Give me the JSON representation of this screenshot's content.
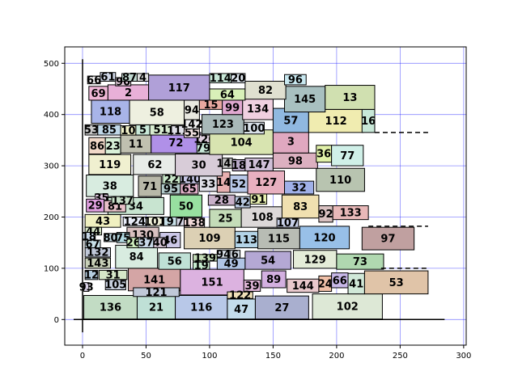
{
  "chart_data": {
    "type": "packed rectangles",
    "title": "",
    "xlabel": "",
    "ylabel": "",
    "xlim": [
      -14,
      302
    ],
    "ylim": [
      -50,
      532
    ],
    "grid": true,
    "grid_color": "#0000ff",
    "xticks": [
      0,
      50,
      100,
      150,
      200,
      250,
      300
    ],
    "yticks": [
      0,
      100,
      200,
      300,
      400,
      500
    ],
    "reference_lines": [
      {
        "orientation": "vertical",
        "x": 0,
        "y0": -25,
        "y1": 508,
        "style": "solid"
      },
      {
        "orientation": "horizontal",
        "y": 0,
        "x0": -7,
        "x1": 285,
        "style": "solid"
      },
      {
        "orientation": "horizontal",
        "y": 365,
        "x0": 230,
        "x1": 272,
        "style": "dashed"
      },
      {
        "orientation": "horizontal",
        "y": 182,
        "x0": 225,
        "x1": 272,
        "style": "dashed"
      },
      {
        "orientation": "horizontal",
        "y": 100,
        "x0": 235,
        "x1": 272,
        "style": "dashed"
      }
    ],
    "rects": [
      {
        "label": "136",
        "x0": 1,
        "x1": 43,
        "y0": 1,
        "y1": 47,
        "color": "#c2dcc4"
      },
      {
        "label": "21",
        "x0": 43,
        "x1": 73,
        "y0": 1,
        "y1": 47,
        "color": "#bfe0d6"
      },
      {
        "label": "116",
        "x0": 73,
        "x1": 114,
        "y0": 1,
        "y1": 47,
        "color": "#b8c8e8"
      },
      {
        "label": "47",
        "x0": 114,
        "x1": 136,
        "y0": 1,
        "y1": 40,
        "color": "#c4dcec"
      },
      {
        "label": "27",
        "x0": 136,
        "x1": 178,
        "y0": 1,
        "y1": 46,
        "color": "#a9afcf"
      },
      {
        "label": "102",
        "x0": 181,
        "x1": 236,
        "y0": 1,
        "y1": 50,
        "color": "#dde8d6"
      },
      {
        "label": "93",
        "x0": 1,
        "x1": 5,
        "y0": 55,
        "y1": 72,
        "color": "#d8d0e4"
      },
      {
        "label": "12",
        "x0": 2,
        "x1": 12,
        "y0": 78,
        "y1": 96,
        "color": "#b5cde0"
      },
      {
        "label": "31",
        "x0": 13,
        "x1": 35,
        "y0": 78,
        "y1": 96,
        "color": "#d5e8c8"
      },
      {
        "label": "141",
        "x0": 36,
        "x1": 77,
        "y0": 56,
        "y1": 100,
        "color": "#d4a5a5"
      },
      {
        "label": "151",
        "x0": 77,
        "x1": 127,
        "y0": 48,
        "y1": 98,
        "color": "#dcb2e0"
      },
      {
        "label": "39",
        "x0": 127,
        "x1": 140,
        "y0": 55,
        "y1": 77,
        "color": "#e0b6d8"
      },
      {
        "label": "122",
        "x0": 114,
        "x1": 134,
        "y0": 41,
        "y1": 54,
        "color": "#f0e0b8"
      },
      {
        "label": "89",
        "x0": 141,
        "x1": 160,
        "y0": 62,
        "y1": 95,
        "color": "#d3b0e0"
      },
      {
        "label": "144",
        "x0": 161,
        "x1": 186,
        "y0": 53,
        "y1": 79,
        "color": "#e8c8cc"
      },
      {
        "label": "24",
        "x0": 186,
        "x1": 196,
        "y0": 55,
        "y1": 85,
        "color": "#f0c0a8"
      },
      {
        "label": "66",
        "x0": 196,
        "x1": 209,
        "y0": 62,
        "y1": 91,
        "color": "#c8b8e8"
      },
      {
        "label": "41",
        "x0": 209,
        "x1": 222,
        "y0": 50,
        "y1": 90,
        "color": "#d0e8d8"
      },
      {
        "label": "53",
        "x0": 222,
        "x1": 272,
        "y0": 50,
        "y1": 95,
        "color": "#e0c4a8"
      },
      {
        "label": "56",
        "x0": 60,
        "x1": 85,
        "y0": 98,
        "y1": 130,
        "color": "#bfe0d6"
      },
      {
        "label": "84",
        "x0": 26,
        "x1": 59,
        "y0": 100,
        "y1": 145,
        "color": "#d8ece0"
      },
      {
        "label": "143",
        "x0": 2,
        "x1": 22,
        "y0": 100,
        "y1": 120,
        "color": "#c8d0b8"
      },
      {
        "label": "132",
        "x0": 2,
        "x1": 22,
        "y0": 122,
        "y1": 140,
        "color": "#c0c8d8"
      },
      {
        "label": "19",
        "x0": 87,
        "x1": 100,
        "y0": 98,
        "y1": 112,
        "color": "#c8ecd0"
      },
      {
        "label": "139",
        "x0": 87,
        "x1": 106,
        "y0": 114,
        "y1": 127,
        "color": "#c4dcb8"
      },
      {
        "label": "49",
        "x0": 106,
        "x1": 128,
        "y0": 98,
        "y1": 120,
        "color": "#b0c4e4"
      },
      {
        "label": "54",
        "x0": 128,
        "x1": 164,
        "y0": 98,
        "y1": 133,
        "color": "#b4a8d4"
      },
      {
        "label": "129",
        "x0": 166,
        "x1": 200,
        "y0": 100,
        "y1": 135,
        "color": "#e4ecd8"
      },
      {
        "label": "73",
        "x0": 200,
        "x1": 237,
        "y0": 98,
        "y1": 128,
        "color": "#b0d8b0"
      },
      {
        "label": "109",
        "x0": 80,
        "x1": 120,
        "y0": 138,
        "y1": 180,
        "color": "#dcd0b4"
      },
      {
        "label": "113",
        "x0": 120,
        "x1": 138,
        "y0": 140,
        "y1": 172,
        "color": "#b4d4e8"
      },
      {
        "label": "115",
        "x0": 138,
        "x1": 171,
        "y0": 138,
        "y1": 178,
        "color": "#b8bcb4"
      },
      {
        "label": "120",
        "x0": 171,
        "x1": 210,
        "y0": 138,
        "y1": 182,
        "color": "#98c0e8"
      },
      {
        "label": "97",
        "x0": 220,
        "x1": 261,
        "y0": 136,
        "y1": 180,
        "color": "#c0a0a0"
      },
      {
        "label": "46",
        "x0": 61,
        "x1": 77,
        "y0": 140,
        "y1": 170,
        "color": "#ccc8e8"
      },
      {
        "label": "130",
        "x0": 35,
        "x1": 60,
        "y0": 150,
        "y1": 180,
        "color": "#d8c0c0"
      },
      {
        "label": "43",
        "x0": 2,
        "x1": 30,
        "y0": 180,
        "y1": 205,
        "color": "#f0f0c0"
      },
      {
        "label": "34",
        "x0": 20,
        "x1": 64,
        "y0": 205,
        "y1": 238,
        "color": "#c8e4d0"
      },
      {
        "label": "50",
        "x0": 69,
        "x1": 94,
        "y0": 200,
        "y1": 243,
        "color": "#98e0a0"
      },
      {
        "label": "25",
        "x0": 100,
        "x1": 125,
        "y0": 180,
        "y1": 215,
        "color": "#c4dcb8"
      },
      {
        "label": "108",
        "x0": 125,
        "x1": 158,
        "y0": 180,
        "y1": 220,
        "color": "#dcd8d8"
      },
      {
        "label": "107",
        "x0": 153,
        "x1": 170,
        "y0": 180,
        "y1": 198,
        "color": "#c8d0e8"
      },
      {
        "label": "83",
        "x0": 157,
        "x1": 186,
        "y0": 198,
        "y1": 243,
        "color": "#f0e0b0"
      },
      {
        "label": "92",
        "x0": 186,
        "x1": 197,
        "y0": 190,
        "y1": 222,
        "color": "#d8c0c0"
      },
      {
        "label": "133",
        "x0": 197,
        "x1": 225,
        "y0": 195,
        "y1": 222,
        "color": "#e8b8b8"
      },
      {
        "label": "28",
        "x0": 99,
        "x1": 120,
        "y0": 223,
        "y1": 243,
        "color": "#c8b0c8"
      },
      {
        "label": "42",
        "x0": 120,
        "x1": 132,
        "y0": 218,
        "y1": 240,
        "color": "#b8c8e0"
      },
      {
        "label": "91",
        "x0": 132,
        "x1": 145,
        "y0": 225,
        "y1": 245,
        "color": "#e8f0b0"
      },
      {
        "label": "38",
        "x0": 3,
        "x1": 40,
        "y0": 240,
        "y1": 282,
        "color": "#d8ece0"
      },
      {
        "label": "71",
        "x0": 44,
        "x1": 62,
        "y0": 240,
        "y1": 280,
        "color": "#b8b8a8"
      },
      {
        "label": "95",
        "x0": 62,
        "x1": 77,
        "y0": 245,
        "y1": 265,
        "color": "#b0c8c8"
      },
      {
        "label": "65",
        "x0": 77,
        "x1": 91,
        "y0": 245,
        "y1": 265,
        "color": "#e0b0c8"
      },
      {
        "label": "22",
        "x0": 63,
        "x1": 77,
        "y0": 265,
        "y1": 283,
        "color": "#c8e8c8"
      },
      {
        "label": "140",
        "x0": 77,
        "x1": 92,
        "y0": 265,
        "y1": 283,
        "color": "#c8c8e8"
      },
      {
        "label": "33",
        "x0": 92,
        "x1": 106,
        "y0": 250,
        "y1": 280,
        "color": "#e0e0e8"
      },
      {
        "label": "14",
        "x0": 106,
        "x1": 116,
        "y0": 248,
        "y1": 288,
        "color": "#e8b0b0"
      },
      {
        "label": "52",
        "x0": 116,
        "x1": 130,
        "y0": 248,
        "y1": 282,
        "color": "#b8c8e8"
      },
      {
        "label": "127",
        "x0": 130,
        "x1": 159,
        "y0": 245,
        "y1": 290,
        "color": "#e8b0c0"
      },
      {
        "label": "32",
        "x0": 159,
        "x1": 182,
        "y0": 245,
        "y1": 270,
        "color": "#a0b0e8"
      },
      {
        "label": "110",
        "x0": 184,
        "x1": 222,
        "y0": 250,
        "y1": 295,
        "color": "#b8c4b0"
      },
      {
        "label": "119",
        "x0": 5,
        "x1": 38,
        "y0": 283,
        "y1": 322,
        "color": "#f0f0d0"
      },
      {
        "label": "62",
        "x0": 40,
        "x1": 74,
        "y0": 283,
        "y1": 322,
        "color": "#e8ece8"
      },
      {
        "label": "30",
        "x0": 73,
        "x1": 110,
        "y0": 280,
        "y1": 323,
        "color": "#d8ccd8"
      },
      {
        "label": "148",
        "x0": 110,
        "x1": 118,
        "y0": 295,
        "y1": 315,
        "color": "#c0c0c0"
      },
      {
        "label": "18",
        "x0": 118,
        "x1": 128,
        "y0": 290,
        "y1": 312,
        "color": "#b8a8c8"
      },
      {
        "label": "147",
        "x0": 128,
        "x1": 150,
        "y0": 290,
        "y1": 315,
        "color": "#d0c0d8"
      },
      {
        "label": "98",
        "x0": 150,
        "x1": 185,
        "y0": 295,
        "y1": 325,
        "color": "#dcb0c0"
      },
      {
        "label": "36",
        "x0": 184,
        "x1": 196,
        "y0": 307,
        "y1": 340,
        "color": "#e0f0a8"
      },
      {
        "label": "77",
        "x0": 196,
        "x1": 221,
        "y0": 300,
        "y1": 340,
        "color": "#d0f0e8"
      },
      {
        "label": "86",
        "x0": 5,
        "x1": 18,
        "y0": 323,
        "y1": 355,
        "color": "#f0d8c8"
      },
      {
        "label": "23",
        "x0": 18,
        "x1": 30,
        "y0": 323,
        "y1": 355,
        "color": "#d8f0d8"
      },
      {
        "label": "11",
        "x0": 30,
        "x1": 54,
        "y0": 325,
        "y1": 360,
        "color": "#c0c0b0"
      },
      {
        "label": "72",
        "x0": 54,
        "x1": 93,
        "y0": 325,
        "y1": 365,
        "color": "#b090e8"
      },
      {
        "label": "79",
        "x0": 90,
        "x1": 100,
        "y0": 325,
        "y1": 345,
        "color": "#c8e8d8"
      },
      {
        "label": "126",
        "x0": 91,
        "x1": 101,
        "y0": 345,
        "y1": 360,
        "color": "#e0d0e0"
      },
      {
        "label": "104",
        "x0": 100,
        "x1": 150,
        "y0": 322,
        "y1": 370,
        "color": "#d8e4b0"
      },
      {
        "label": "3",
        "x0": 150,
        "x1": 178,
        "y0": 325,
        "y1": 370,
        "color": "#e0a8c0"
      },
      {
        "label": "53",
        "x0": 2,
        "x1": 12,
        "y0": 360,
        "y1": 380,
        "color": "#c8c8c8"
      },
      {
        "label": "85",
        "x0": 12,
        "x1": 30,
        "y0": 360,
        "y1": 380,
        "color": "#c0d8e8"
      },
      {
        "label": "10",
        "x0": 30,
        "x1": 42,
        "y0": 360,
        "y1": 378,
        "color": "#f0f0c8"
      },
      {
        "label": "5",
        "x0": 42,
        "x1": 53,
        "y0": 360,
        "y1": 380,
        "color": "#c8e8d8"
      },
      {
        "label": "51",
        "x0": 53,
        "x1": 70,
        "y0": 360,
        "y1": 380,
        "color": "#d8ecd0"
      },
      {
        "label": "111",
        "x0": 70,
        "x1": 80,
        "y0": 360,
        "y1": 378,
        "color": "#e0e0e8"
      },
      {
        "label": "55",
        "x0": 80,
        "x1": 92,
        "y0": 355,
        "y1": 375,
        "color": "#f0e0e0"
      },
      {
        "label": "142",
        "x0": 80,
        "x1": 92,
        "y0": 372,
        "y1": 390,
        "color": "#f0f0f0"
      },
      {
        "label": "123",
        "x0": 94,
        "x1": 127,
        "y0": 362,
        "y1": 400,
        "color": "#a8b8b8"
      },
      {
        "label": "100",
        "x0": 127,
        "x1": 143,
        "y0": 362,
        "y1": 385,
        "color": "#d8e0e8"
      },
      {
        "label": "57",
        "x0": 150,
        "x1": 178,
        "y0": 365,
        "y1": 412,
        "color": "#90b8e0"
      },
      {
        "label": "112",
        "x0": 178,
        "x1": 221,
        "y0": 365,
        "y1": 410,
        "color": "#f0ecb0"
      },
      {
        "label": "16",
        "x0": 220,
        "x1": 230,
        "y0": 365,
        "y1": 410,
        "color": "#c8e8d8"
      },
      {
        "label": "118",
        "x0": 7,
        "x1": 37,
        "y0": 383,
        "y1": 428,
        "color": "#a8b4e8"
      },
      {
        "label": "58",
        "x0": 37,
        "x1": 80,
        "y0": 380,
        "y1": 428,
        "color": "#eef0e0"
      },
      {
        "label": "94",
        "x0": 80,
        "x1": 92,
        "y0": 390,
        "y1": 428,
        "color": "#e8e8e0"
      },
      {
        "label": "15",
        "x0": 92,
        "x1": 110,
        "y0": 410,
        "y1": 428,
        "color": "#e8a8a0"
      },
      {
        "label": "99",
        "x0": 110,
        "x1": 126,
        "y0": 400,
        "y1": 428,
        "color": "#e0a8d0"
      },
      {
        "label": "134",
        "x0": 126,
        "x1": 150,
        "y0": 390,
        "y1": 432,
        "color": "#f0d0e0"
      },
      {
        "label": "145",
        "x0": 159,
        "x1": 191,
        "y0": 405,
        "y1": 455,
        "color": "#a8c0c0"
      },
      {
        "label": "13",
        "x0": 191,
        "x1": 230,
        "y0": 410,
        "y1": 457,
        "color": "#d0e0b0"
      },
      {
        "label": "69",
        "x0": 5,
        "x1": 20,
        "y0": 428,
        "y1": 455,
        "color": "#f0b8d8"
      },
      {
        "label": "2",
        "x0": 20,
        "x1": 52,
        "y0": 428,
        "y1": 458,
        "color": "#e8b0d8"
      },
      {
        "label": "117",
        "x0": 52,
        "x1": 100,
        "y0": 428,
        "y1": 477,
        "color": "#b0a0d8"
      },
      {
        "label": "64",
        "x0": 100,
        "x1": 128,
        "y0": 428,
        "y1": 450,
        "color": "#d8f0b8"
      },
      {
        "label": "82",
        "x0": 128,
        "x1": 160,
        "y0": 430,
        "y1": 465,
        "color": "#e0e0d0"
      },
      {
        "label": "96",
        "x0": 159,
        "x1": 176,
        "y0": 458,
        "y1": 478,
        "color": "#c8e8f0"
      },
      {
        "label": "66",
        "x0": 4,
        "x1": 14,
        "y0": 460,
        "y1": 475,
        "color": "#f0f0f0"
      },
      {
        "label": "61",
        "x0": 14,
        "x1": 26,
        "y0": 465,
        "y1": 482,
        "color": "#d0d8e8"
      },
      {
        "label": "90",
        "x0": 26,
        "x1": 38,
        "y0": 456,
        "y1": 472,
        "color": "#e8d0e0"
      },
      {
        "label": "87",
        "x0": 31,
        "x1": 43,
        "y0": 465,
        "y1": 480,
        "color": "#c0d8d0"
      },
      {
        "label": "4",
        "x0": 43,
        "x1": 52,
        "y0": 465,
        "y1": 480,
        "color": "#e0e0e0"
      },
      {
        "label": "114",
        "x0": 100,
        "x1": 117,
        "y0": 462,
        "y1": 480,
        "color": "#c8e8d8"
      },
      {
        "label": "20",
        "x0": 117,
        "x1": 128,
        "y0": 462,
        "y1": 480,
        "color": "#e0e8f0"
      },
      {
        "label": "35",
        "x0": 10,
        "x1": 20,
        "y0": 230,
        "y1": 245,
        "color": "#e0c8e0"
      },
      {
        "label": "29",
        "x0": 3,
        "x1": 17,
        "y0": 210,
        "y1": 235,
        "color": "#e0a0e0"
      },
      {
        "label": "81",
        "x0": 17,
        "x1": 34,
        "y0": 210,
        "y1": 232,
        "color": "#e8c0c8"
      },
      {
        "label": "137",
        "x0": 23,
        "x1": 40,
        "y0": 225,
        "y1": 240,
        "color": "#c8e0c8"
      },
      {
        "label": "124",
        "x0": 32,
        "x1": 50,
        "y0": 183,
        "y1": 200,
        "color": "#e8ecf8"
      },
      {
        "label": "101",
        "x0": 50,
        "x1": 64,
        "y0": 183,
        "y1": 200,
        "color": "#f0f0d8"
      },
      {
        "label": "9",
        "x0": 64,
        "x1": 74,
        "y0": 183,
        "y1": 200,
        "color": "#c8e0e8"
      },
      {
        "label": "7",
        "x0": 74,
        "x1": 80,
        "y0": 183,
        "y1": 200,
        "color": "#d8d8e8"
      },
      {
        "label": "138",
        "x0": 80,
        "x1": 96,
        "y0": 180,
        "y1": 198,
        "color": "#f0d8d8"
      },
      {
        "label": "44",
        "x0": 2,
        "x1": 15,
        "y0": 165,
        "y1": 180,
        "color": "#d8e8c8"
      },
      {
        "label": "18",
        "x0": 0,
        "x1": 10,
        "y0": 155,
        "y1": 170,
        "color": "#c8d8e8"
      },
      {
        "label": "67",
        "x0": 2,
        "x1": 14,
        "y0": 140,
        "y1": 155,
        "color": "#c8e0e8"
      },
      {
        "label": "80",
        "x0": 17,
        "x1": 27,
        "y0": 152,
        "y1": 168,
        "color": "#c0d8e0"
      },
      {
        "label": "75",
        "x0": 27,
        "x1": 37,
        "y0": 150,
        "y1": 170,
        "color": "#b0d8e0"
      },
      {
        "label": "26",
        "x0": 35,
        "x1": 45,
        "y0": 140,
        "y1": 160,
        "color": "#d0f0c0"
      },
      {
        "label": "37",
        "x0": 44,
        "x1": 56,
        "y0": 140,
        "y1": 160,
        "color": "#c8d8e8"
      },
      {
        "label": "40",
        "x0": 56,
        "x1": 66,
        "y0": 140,
        "y1": 160,
        "color": "#d0c0d0"
      },
      {
        "label": "94",
        "x0": 106,
        "x1": 116,
        "y0": 120,
        "y1": 135,
        "color": "#e0e8f0"
      },
      {
        "label": "6",
        "x0": 116,
        "x1": 124,
        "y0": 120,
        "y1": 135,
        "color": "#d0d8e0"
      },
      {
        "label": "121",
        "x0": 40,
        "x1": 76,
        "y0": 45,
        "y1": 62,
        "color": "#c0c8d8"
      },
      {
        "label": "105",
        "x0": 18,
        "x1": 34,
        "y0": 58,
        "y1": 78,
        "color": "#c8d0e0"
      }
    ]
  }
}
